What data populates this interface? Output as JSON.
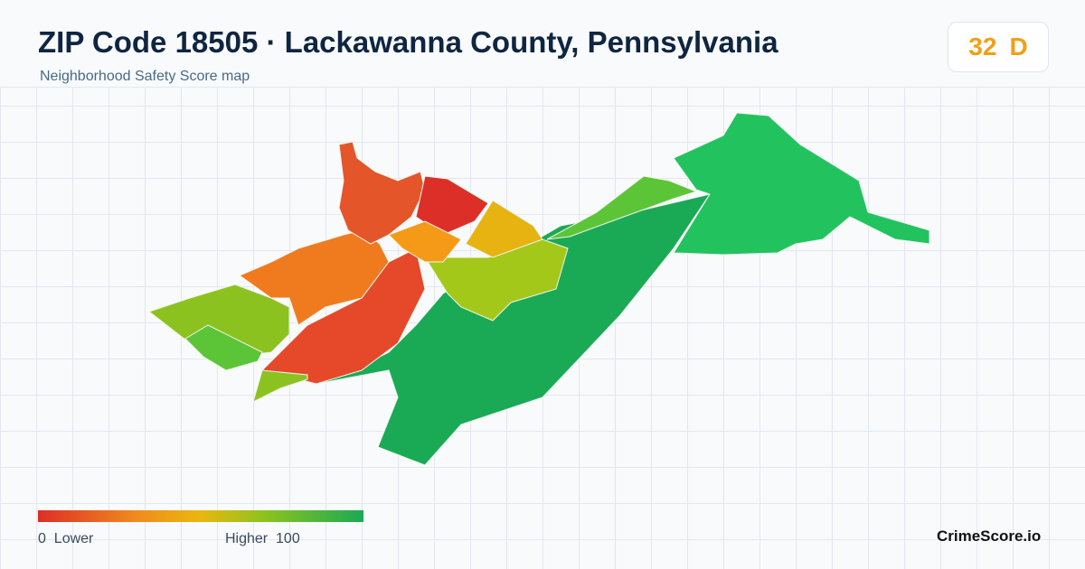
{
  "header": {
    "title": "ZIP Code 18505 · Lackawanna County, Pennsylvania",
    "subtitle": "Neighborhood Safety Score map"
  },
  "score": {
    "value": 32,
    "grade": "D"
  },
  "legend": {
    "min": 0,
    "min_label": "Lower",
    "max_label": "Higher",
    "max": 100
  },
  "brand": "CrimeScore.io"
}
